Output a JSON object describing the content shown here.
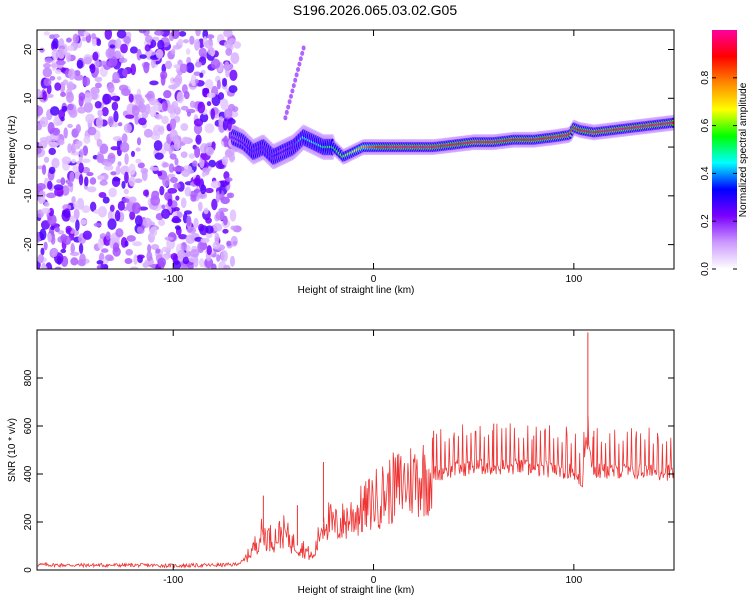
{
  "title": "S196.2026.065.03.02.G05",
  "chart_data": [
    {
      "type": "heatmap",
      "xlabel": "Height of straight line (km)",
      "ylabel": "Frequency (Hz)",
      "xlim": [
        -168,
        150
      ],
      "ylim": [
        -25,
        24
      ],
      "xticks": [
        -100,
        0,
        100
      ],
      "yticks": [
        -20,
        -10,
        0,
        10,
        20
      ],
      "xtick_labels": [
        "-100",
        "0",
        "100"
      ],
      "ytick_labels": [
        "-20",
        "-10",
        "0",
        "10",
        "20"
      ],
      "noise_region": {
        "x_from": -168,
        "x_to": -68,
        "amplitude": 0.25
      },
      "ridge": {
        "x": [
          -70,
          -65,
          -60,
          -55,
          -50,
          -45,
          -40,
          -35,
          -30,
          -25,
          -20,
          -15,
          -10,
          -5,
          0,
          10,
          20,
          30,
          40,
          50,
          60,
          70,
          80,
          90,
          98,
          100,
          103,
          110,
          120,
          130,
          140,
          150
        ],
        "freq": [
          2,
          1,
          -1,
          0,
          -2,
          -1,
          0,
          2,
          1,
          0,
          0,
          -2,
          -1,
          0,
          0,
          0,
          0,
          0,
          0.5,
          1,
          1,
          1.5,
          1.5,
          2,
          2.5,
          4,
          3.5,
          3,
          3.5,
          4,
          4.5,
          5
        ],
        "amplitude": [
          0.25,
          0.3,
          0.35,
          0.35,
          0.35,
          0.3,
          0.35,
          0.45,
          0.45,
          0.5,
          0.55,
          0.6,
          0.65,
          0.75,
          0.85,
          0.95,
          0.95,
          0.95,
          0.9,
          0.95,
          0.95,
          0.9,
          0.9,
          0.95,
          0.95,
          0.9,
          0.9,
          0.95,
          0.95,
          0.95,
          0.95,
          0.95
        ]
      },
      "colorbar": {
        "label": "Normalized spectral amplitude",
        "range": [
          0,
          1
        ],
        "ticks": [
          0.0,
          0.2,
          0.4,
          0.6,
          0.8
        ],
        "tick_labels": [
          "0.0",
          "0.2",
          "0.4",
          "0.6",
          "0.8"
        ],
        "colors": [
          "#ffffff",
          "#cc99ff",
          "#7a00ff",
          "#0000ff",
          "#00ffff",
          "#00ff00",
          "#ffff00",
          "#ff8800",
          "#ff0000",
          "#ff00a0"
        ]
      }
    },
    {
      "type": "line",
      "xlabel": "Height of straight line (km)",
      "ylabel": "SNR (10 * v/v)",
      "xlim": [
        -168,
        150
      ],
      "ylim": [
        0,
        1000
      ],
      "xticks": [
        -100,
        0,
        100
      ],
      "yticks": [
        0,
        200,
        400,
        600,
        800
      ],
      "xtick_labels": [
        "-100",
        "0",
        "100"
      ],
      "ytick_labels": [
        "0",
        "200",
        "400",
        "600",
        "800"
      ],
      "series": [
        {
          "name": "SNR",
          "color": "#ee3333",
          "x": [
            -168,
            -150,
            -120,
            -100,
            -80,
            -70,
            -65,
            -60,
            -56,
            -50,
            -45,
            -40,
            -35,
            -30,
            -26,
            -24,
            -20,
            -15,
            -10,
            -5,
            0,
            10,
            20,
            30,
            40,
            50,
            60,
            70,
            80,
            90,
            100,
            104,
            106,
            110,
            120,
            130,
            140,
            150
          ],
          "y": [
            22,
            20,
            20,
            18,
            20,
            22,
            35,
            90,
            150,
            130,
            160,
            110,
            90,
            50,
            180,
            220,
            180,
            200,
            230,
            250,
            290,
            340,
            380,
            400,
            420,
            430,
            430,
            430,
            420,
            420,
            410,
            340,
            560,
            410,
            410,
            410,
            410,
            405
          ],
          "spikes": [
            [
              -55,
              310
            ],
            [
              -38,
              270
            ],
            [
              -25,
              450
            ],
            [
              107,
              990
            ],
            [
              110,
              580
            ],
            [
              80,
              560
            ],
            [
              60,
              610
            ],
            [
              30,
              580
            ]
          ]
        }
      ]
    }
  ]
}
